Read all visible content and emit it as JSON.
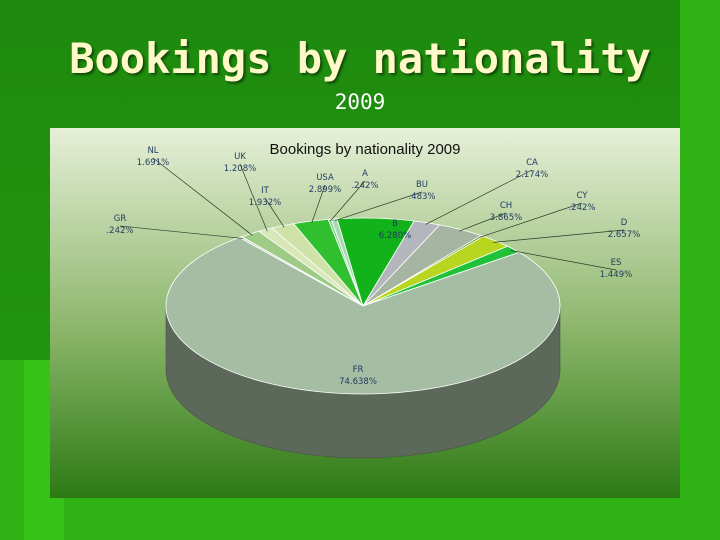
{
  "slide": {
    "title": "Bookings by nationality",
    "subtitle": "2009"
  },
  "colors": {
    "background": "#1f8a10",
    "title_text": "#fff9c8",
    "panel_top": "#e6efd7",
    "panel_bottom": "#2c7a14",
    "label_text": "#1e3a5f"
  },
  "chart_data": {
    "type": "pie",
    "title": "Bookings by nationality 2009",
    "three_d": true,
    "slices": [
      {
        "label": "NL",
        "display": "1.691%",
        "value": 1.691,
        "color": "#9ecb86"
      },
      {
        "label": "UK",
        "display": "1.208%",
        "value": 1.208,
        "color": "#d8e6b8"
      },
      {
        "label": "IT",
        "display": "1.932%",
        "value": 1.932,
        "color": "#cfe2a8"
      },
      {
        "label": "USA",
        "display": "2.899%",
        "value": 2.899,
        "color": "#2fbf2f"
      },
      {
        "label": "A",
        "display": ".242%",
        "value": 0.242,
        "color": "#8ed39a"
      },
      {
        "label": "BU",
        "display": ".483%",
        "value": 0.483,
        "color": "#a4dcb0"
      },
      {
        "label": "B",
        "display": "6.280%",
        "value": 6.28,
        "color": "#12b21a"
      },
      {
        "label": "CA",
        "display": "2.174%",
        "value": 2.174,
        "color": "#b3b7bd"
      },
      {
        "label": "CH",
        "display": "3.865%",
        "value": 3.865,
        "color": "#a5b5a2"
      },
      {
        "label": "CY",
        "display": ".242%",
        "value": 0.242,
        "color": "#4a9a2a"
      },
      {
        "label": "D",
        "display": "2.657%",
        "value": 2.657,
        "color": "#b8d620"
      },
      {
        "label": "ES",
        "display": "1.449%",
        "value": 1.449,
        "color": "#20c23a"
      },
      {
        "label": "FR",
        "display": "74.638%",
        "value": 74.638,
        "color": "#a5bda3"
      },
      {
        "label": "GR",
        "display": ".242%",
        "value": 0.242,
        "color": "#c7d8bf"
      }
    ]
  }
}
